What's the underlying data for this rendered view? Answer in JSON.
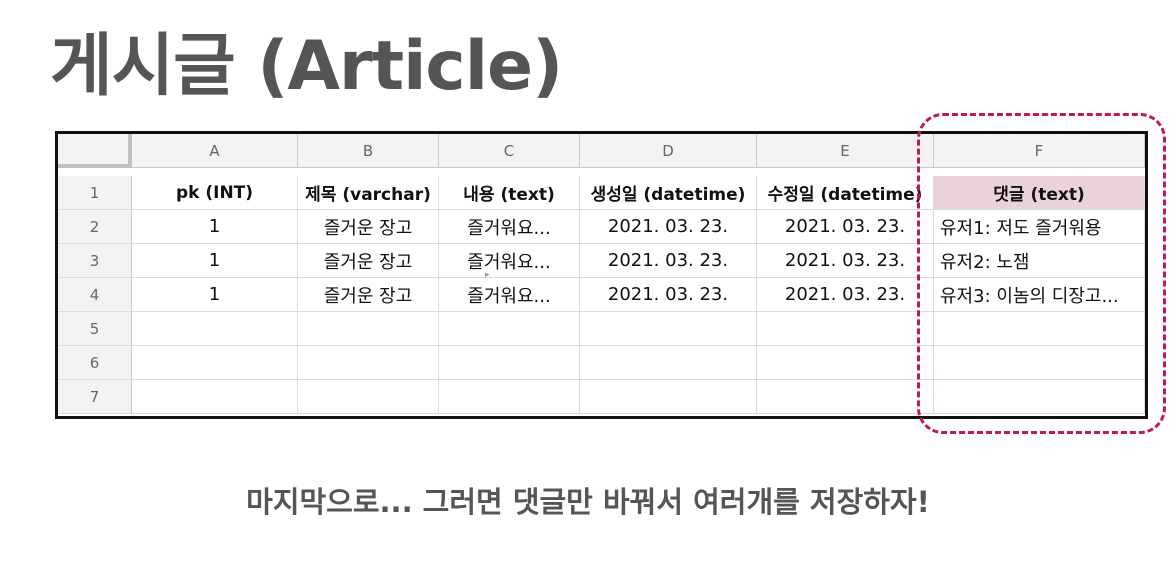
{
  "title": "게시글 (Article)",
  "sheet": {
    "columns": [
      "A",
      "B",
      "C",
      "D",
      "E",
      "F"
    ],
    "row_numbers": [
      "1",
      "2",
      "3",
      "4",
      "5",
      "6",
      "7"
    ],
    "rows": [
      [
        "pk (INT)",
        "제목 (varchar)",
        "내용 (text)",
        "생성일 (datetime)",
        "수정일 (datetime)",
        "댓글 (text)"
      ],
      [
        "1",
        "즐거운 장고",
        "즐거워요...",
        "2021. 03. 23.",
        "2021. 03. 23.",
        "유저1: 저도 즐거워용"
      ],
      [
        "1",
        "즐거운 장고",
        "즐거워요...",
        "2021. 03. 23.",
        "2021. 03. 23.",
        "유저2: 노잼"
      ],
      [
        "1",
        "즐거운 장고",
        "즐거워요...",
        "2021. 03. 23.",
        "2021. 03. 23.",
        "유저3: 이놈의 디장고..."
      ],
      [
        "",
        "",
        "",
        "",
        "",
        ""
      ],
      [
        "",
        "",
        "",
        "",
        "",
        ""
      ],
      [
        "",
        "",
        "",
        "",
        "",
        ""
      ]
    ]
  },
  "caption": "마지막으로... 그러면 댓글만 바꿔서 여러개를 저장하자!",
  "colors": {
    "highlight": "#ead1dc",
    "dash_border": "#c2185b",
    "title_text": "#555555"
  }
}
